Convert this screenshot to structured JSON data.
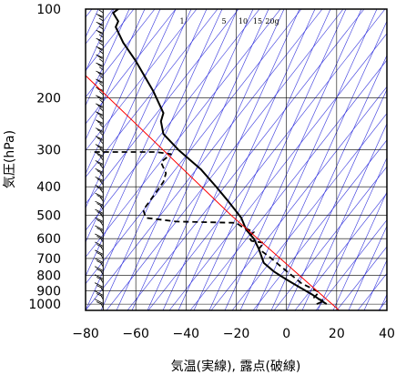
{
  "chart_data": {
    "type": "line",
    "title": "",
    "xlabel": "気温(実線), 露点(破線)",
    "ylabel": "気圧(hPa)",
    "xlim": [
      -80,
      40
    ],
    "ylim": [
      1050,
      100
    ],
    "y_scale": "log",
    "x_ticks": [
      -80,
      -60,
      -40,
      -20,
      0,
      20,
      40
    ],
    "x_tick_labels": [
      "−80",
      "−60",
      "−40",
      "−20",
      "0",
      "20",
      "40"
    ],
    "y_ticks": [
      100,
      200,
      300,
      400,
      500,
      600,
      700,
      800,
      900,
      1000
    ],
    "y_tick_labels": [
      "100",
      "200",
      "300",
      "400",
      "500",
      "600",
      "700",
      "800",
      "900",
      "1000"
    ],
    "mixing_ratio_labels": [
      "1",
      "5",
      "10",
      "15",
      "20g"
    ],
    "grid": true,
    "colors": {
      "temperature": "#000000",
      "dewpoint": "#000000",
      "reference": "#ff0000",
      "background_lines": "#3333dd",
      "grid": "#000000",
      "wind_barbs": "#000000"
    },
    "series": [
      {
        "style": "solid",
        "x": [
          16,
          14,
          10,
          5,
          0,
          -5,
          -9,
          -11,
          -13,
          -16,
          -18,
          -23,
          -28,
          -34,
          -43,
          -49,
          -50,
          -49,
          -53,
          -60,
          -65,
          -68,
          -67,
          -69,
          -67
        ],
        "y": [
          1000,
          975,
          925,
          875,
          825,
          775,
          725,
          650,
          600,
          560,
          510,
          450,
          400,
          350,
          300,
          265,
          240,
          225,
          190,
          150,
          130,
          115,
          110,
          103,
          100
        ]
      },
      {
        "style": "dashed",
        "x": [
          12,
          15,
          11,
          13,
          6,
          -1,
          -6,
          -11,
          -9,
          -14,
          -15,
          -13,
          -16,
          -18,
          -20,
          -44,
          -56,
          -57,
          -53,
          -49,
          -48,
          -50,
          -46,
          -52,
          -78
        ],
        "y": [
          1000,
          975,
          950,
          910,
          850,
          760,
          700,
          650,
          620,
          610,
          590,
          570,
          555,
          545,
          530,
          525,
          510,
          480,
          430,
          385,
          360,
          330,
          310,
          305,
          305
        ]
      },
      {
        "style": "solid",
        "x": [
          -80,
          -22,
          21
        ],
        "y": [
          168,
          500,
          1050
        ]
      }
    ],
    "wind_profile_x": -73
  }
}
